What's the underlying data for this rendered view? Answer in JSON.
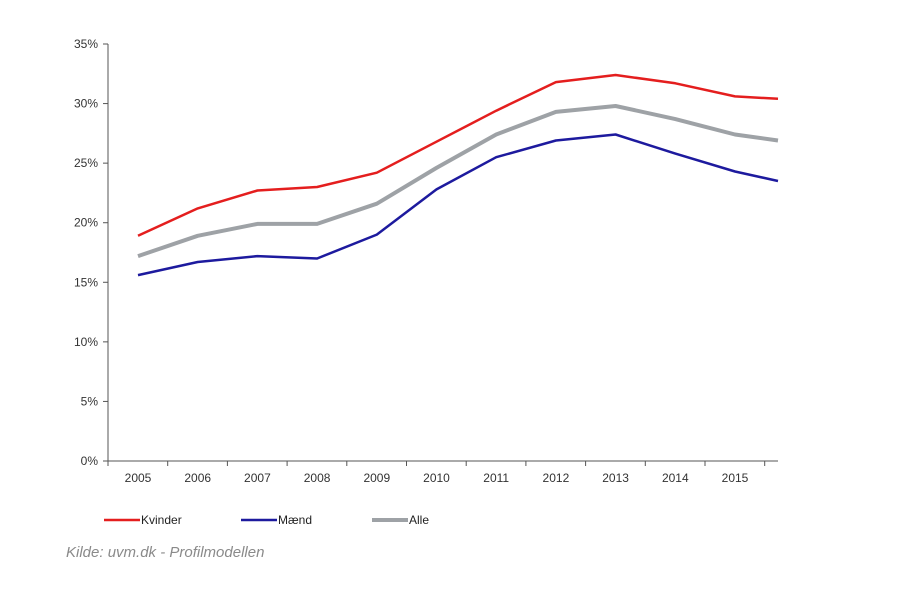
{
  "chart_data": {
    "type": "line",
    "x": [
      "2005",
      "2006",
      "2007",
      "2008",
      "2009",
      "2010",
      "2011",
      "2012",
      "2013",
      "2014",
      "2015",
      "2016"
    ],
    "x_tick_labels": [
      "2005",
      "2006",
      "2007",
      "2008",
      "2009",
      "2010",
      "2011",
      "2012",
      "2013",
      "2014",
      "2015"
    ],
    "y_tick_labels": [
      "0%",
      "5%",
      "10%",
      "15%",
      "20%",
      "25%",
      "30%",
      "35%"
    ],
    "y_ticks": [
      0,
      5,
      10,
      15,
      20,
      25,
      30,
      35
    ],
    "ylim": [
      0,
      35
    ],
    "title": "",
    "xlabel": "",
    "ylabel": "",
    "grid": false,
    "legend_placement": "bottom-left",
    "series": [
      {
        "name": "Kvinder",
        "color": "#e41e1e",
        "values": [
          18.9,
          21.2,
          22.7,
          23.0,
          24.2,
          26.8,
          29.4,
          31.8,
          32.4,
          31.7,
          30.6,
          30.4
        ]
      },
      {
        "name": "Mænd",
        "color": "#1d1a9e",
        "values": [
          15.6,
          16.7,
          17.2,
          17.0,
          19.0,
          22.8,
          25.5,
          26.9,
          27.4,
          25.8,
          24.3,
          23.5
        ]
      },
      {
        "name": "Alle",
        "color": "#9ea2a6",
        "values": [
          17.2,
          18.9,
          19.9,
          19.9,
          21.6,
          24.6,
          27.4,
          29.3,
          29.8,
          28.7,
          27.4,
          26.9
        ]
      }
    ]
  },
  "source_note": "Kilde: uvm.dk - Profilmodellen"
}
